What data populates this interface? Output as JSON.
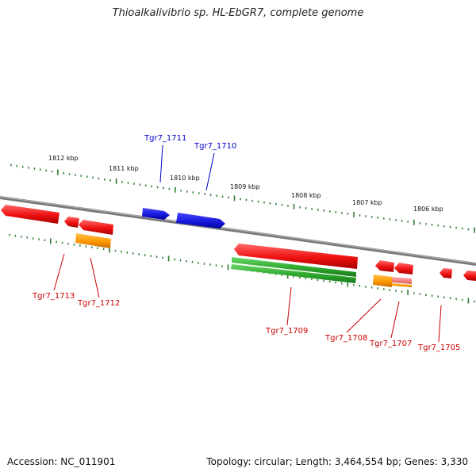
{
  "header": {
    "title": "Thioalkalivibrio sp. HL-EbGR7, complete genome"
  },
  "footer": {
    "accession": "Accession: NC_011901",
    "topology": "Topology: circular; Length: 3,464,554 bp; Genes: 3,330"
  },
  "colors": {
    "backbone": "#888888",
    "tick": "#2e7d2e",
    "kbp_text": "#111111",
    "forward_label": "#0000cc",
    "reverse_label": "#cc0000",
    "cds_red": "#ee1111",
    "cds_blue": "#1a1add",
    "cds_orange": "#ff9900",
    "cds_green": "#2fa82f",
    "cds_pink": "#f08080"
  },
  "scale_labels": [
    "1812 kbp",
    "1811 kbp",
    "1810 kbp",
    "1809 kbp",
    "1808 kbp",
    "1807 kbp",
    "1806 kbp"
  ],
  "gene_labels": {
    "forward": [
      "Tgr7_1711",
      "Tgr7_1710"
    ],
    "reverse": [
      "Tgr7_1713",
      "Tgr7_1712",
      "Tgr7_1709",
      "Tgr7_1708",
      "Tgr7_1707",
      "Tgr7_1705"
    ]
  }
}
